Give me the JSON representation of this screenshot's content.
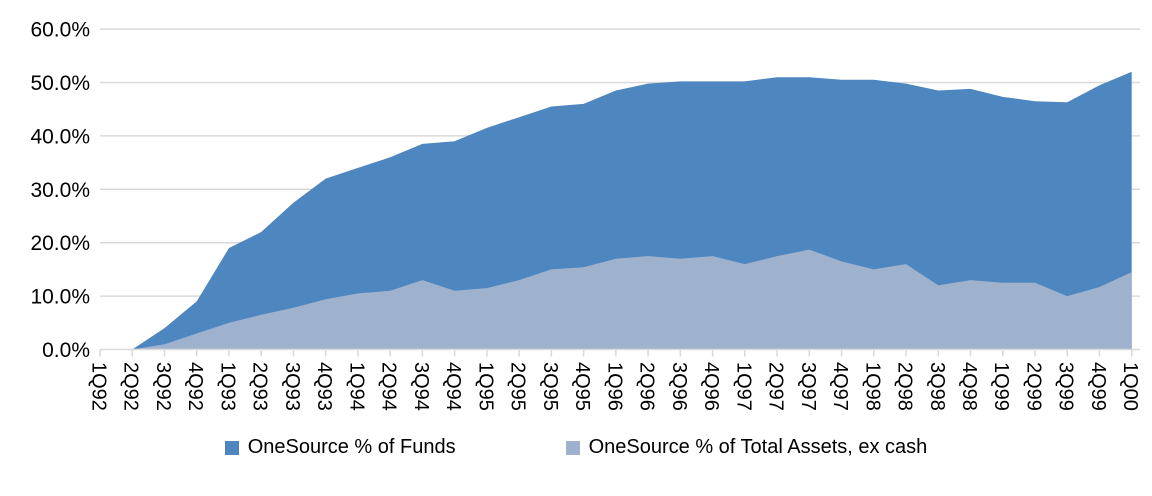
{
  "chart_data": {
    "type": "area",
    "subtype": "overlaid-not-stacked",
    "title": "",
    "x_labels": [
      "1Q92",
      "2Q92",
      "3Q92",
      "4Q92",
      "1Q93",
      "2Q93",
      "3Q93",
      "4Q93",
      "1Q94",
      "2Q94",
      "3Q94",
      "4Q94",
      "1Q95",
      "2Q95",
      "3Q95",
      "4Q95",
      "1Q96",
      "2Q96",
      "3Q96",
      "4Q96",
      "1Q97",
      "2Q97",
      "3Q97",
      "4Q97",
      "1Q98",
      "2Q98",
      "3Q98",
      "4Q98",
      "1Q99",
      "2Q99",
      "3Q99",
      "4Q99",
      "1Q00"
    ],
    "series": [
      {
        "name": "OneSource % of Funds",
        "color": "#4E86BF",
        "values": [
          0,
          0,
          4.0,
          9.0,
          19.0,
          22.0,
          27.5,
          32.0,
          34.0,
          36.0,
          38.5,
          39.0,
          41.5,
          43.5,
          45.5,
          46.0,
          48.5,
          49.8,
          50.2,
          50.2,
          50.2,
          51.0,
          51.0,
          50.5,
          50.5,
          49.8,
          48.5,
          48.8,
          47.3,
          46.5,
          46.3,
          49.5,
          52.0
        ]
      },
      {
        "name": "OneSource % of Total Assets, ex cash",
        "color": "#9EB2CE",
        "values": [
          0,
          0,
          1.0,
          3.0,
          5.0,
          6.5,
          7.8,
          9.4,
          10.5,
          11.0,
          13.0,
          11.0,
          11.5,
          13.0,
          15.0,
          15.4,
          17.0,
          17.5,
          17.0,
          17.5,
          16.0,
          17.5,
          18.7,
          16.5,
          15.0,
          16.0,
          12.0,
          13.0,
          12.5,
          12.5,
          10.0,
          11.7,
          14.5
        ]
      }
    ],
    "y_ticks": [
      "0.0%",
      "10.0%",
      "20.0%",
      "30.0%",
      "40.0%",
      "50.0%",
      "60.0%"
    ],
    "ylim": [
      0,
      60
    ],
    "xlabel": "",
    "ylabel": "",
    "grid": "horizontal",
    "legend_position": "bottom"
  },
  "colors": {
    "series_funds": "#4E86BF",
    "series_assets": "#9EB2CE",
    "gridline": "#D9D9D9",
    "axis_line": "#D9D9D9",
    "text": "#000000",
    "background": "#FFFFFF"
  }
}
